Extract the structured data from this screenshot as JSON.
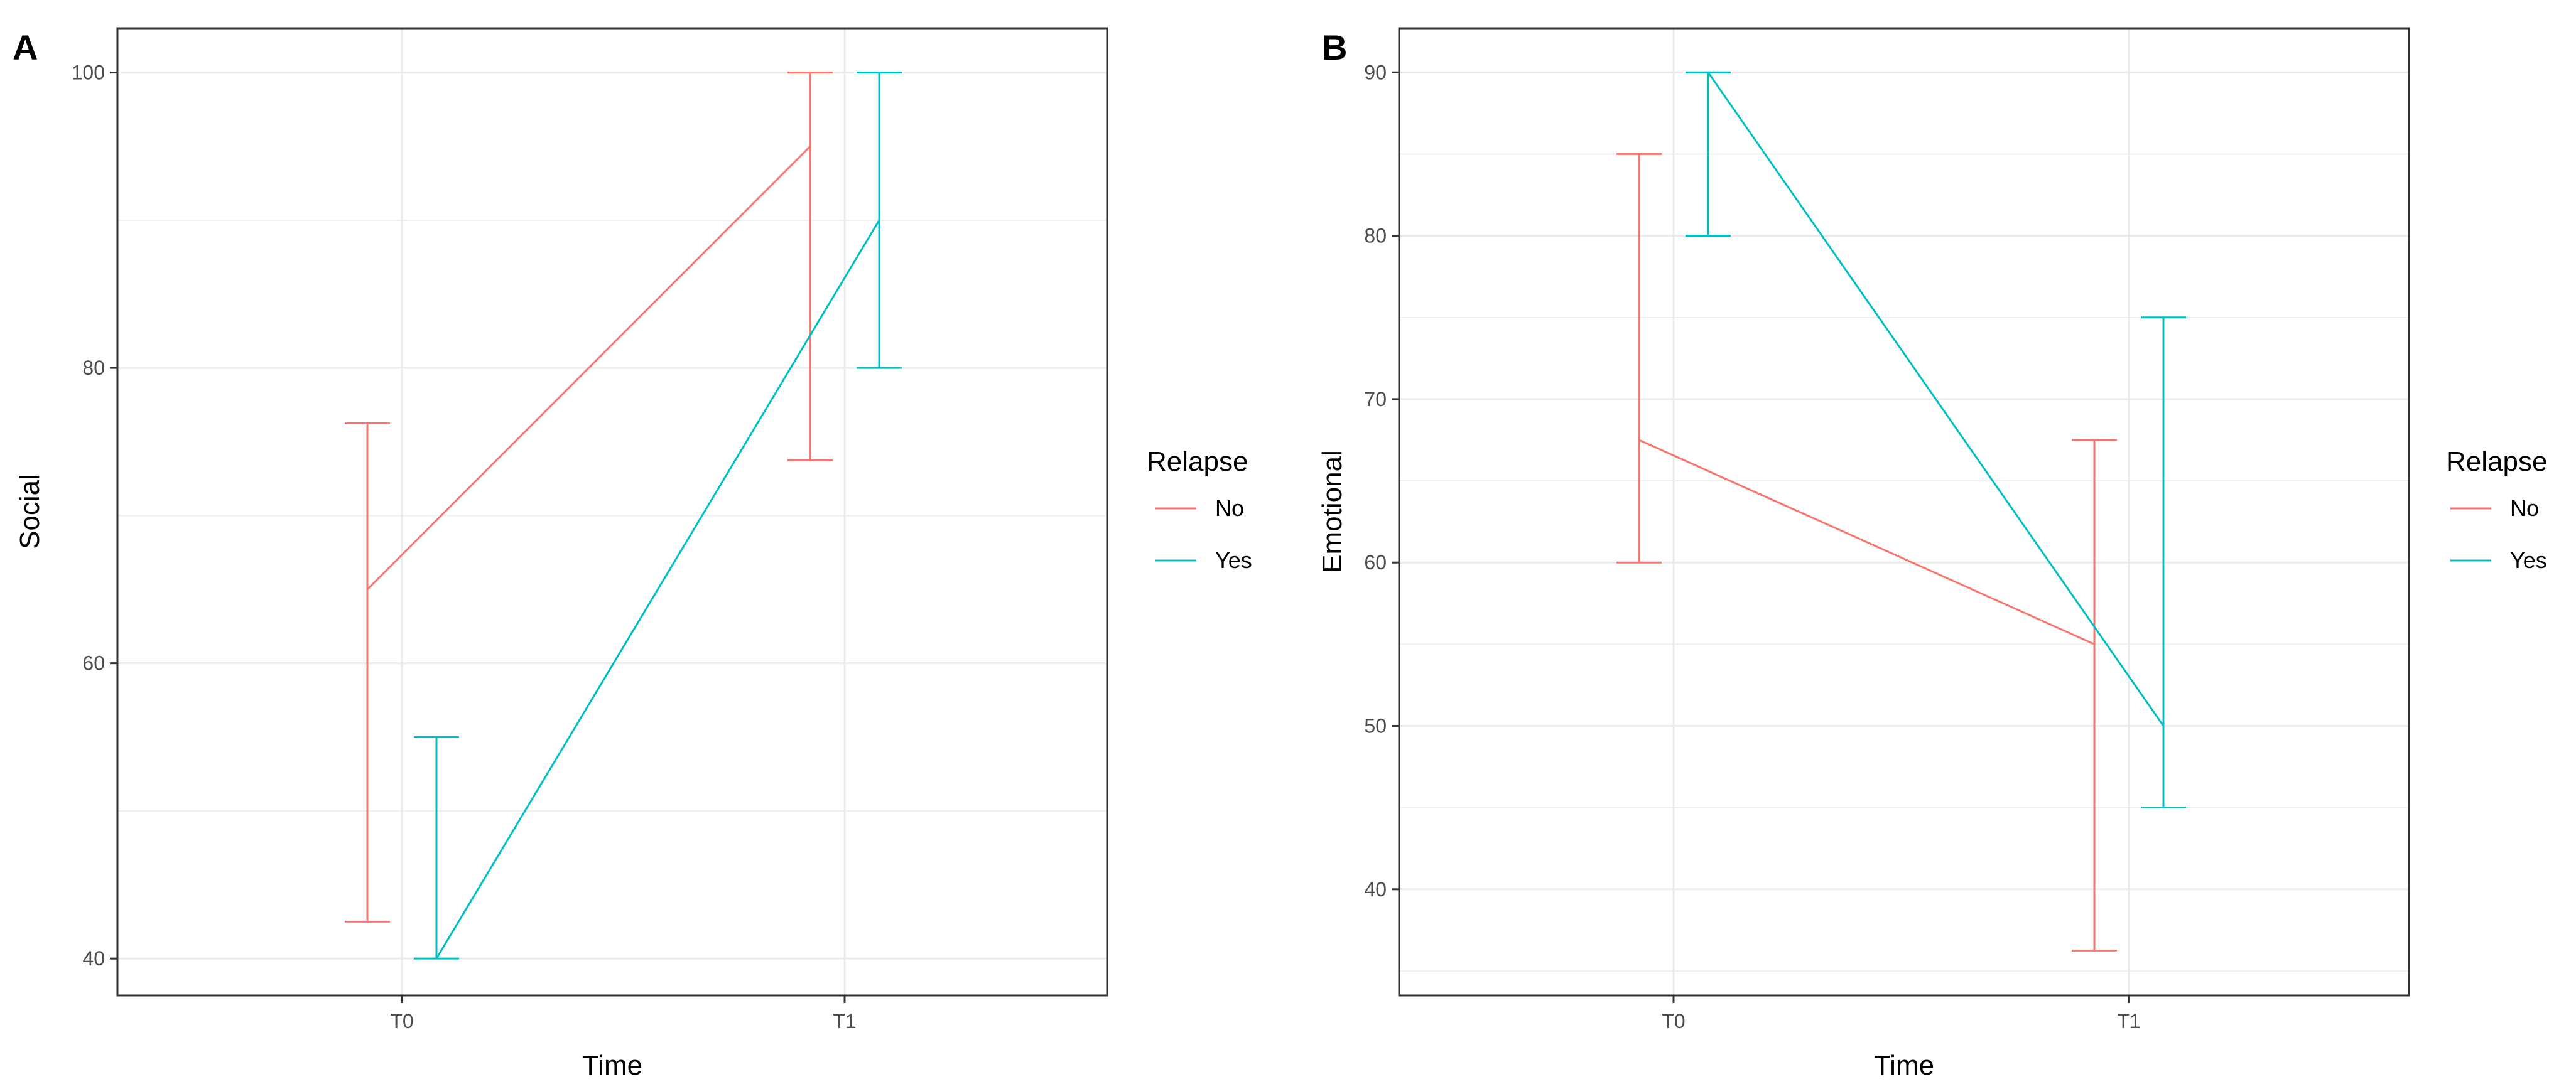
{
  "colors": {
    "No": "#F8766D",
    "Yes": "#00BFC4"
  },
  "chart_data": [
    {
      "panel": "A",
      "type": "line",
      "xlabel": "Time",
      "ylabel": "Social",
      "categories": [
        "T0",
        "T1"
      ],
      "ylim": [
        37.5,
        103
      ],
      "yticks": [
        40,
        60,
        80,
        100
      ],
      "yminor": [
        50,
        70,
        90
      ],
      "legend": {
        "title": "Relapse",
        "entries": [
          "No",
          "Yes"
        ],
        "position": "right"
      },
      "series": [
        {
          "name": "No",
          "values": [
            65,
            95
          ],
          "err_low": [
            42.5,
            73.75
          ],
          "err_high": [
            76.25,
            100
          ]
        },
        {
          "name": "Yes",
          "values": [
            40,
            90
          ],
          "err_low": [
            40,
            80
          ],
          "err_high": [
            55,
            100
          ]
        }
      ]
    },
    {
      "panel": "B",
      "type": "line",
      "xlabel": "Time",
      "ylabel": "Emotional",
      "categories": [
        "T0",
        "T1"
      ],
      "ylim": [
        33.5,
        92.7
      ],
      "yticks": [
        40,
        50,
        60,
        70,
        80,
        90
      ],
      "yminor": [
        35,
        45,
        55,
        65,
        75,
        85
      ],
      "legend": {
        "title": "Relapse",
        "entries": [
          "No",
          "Yes"
        ],
        "position": "right"
      },
      "series": [
        {
          "name": "No",
          "values": [
            67.5,
            55
          ],
          "err_low": [
            60,
            36.25
          ],
          "err_high": [
            85,
            67.5
          ]
        },
        {
          "name": "Yes",
          "values": [
            90,
            50
          ],
          "err_low": [
            80,
            45
          ],
          "err_high": [
            90,
            75
          ]
        }
      ]
    }
  ]
}
